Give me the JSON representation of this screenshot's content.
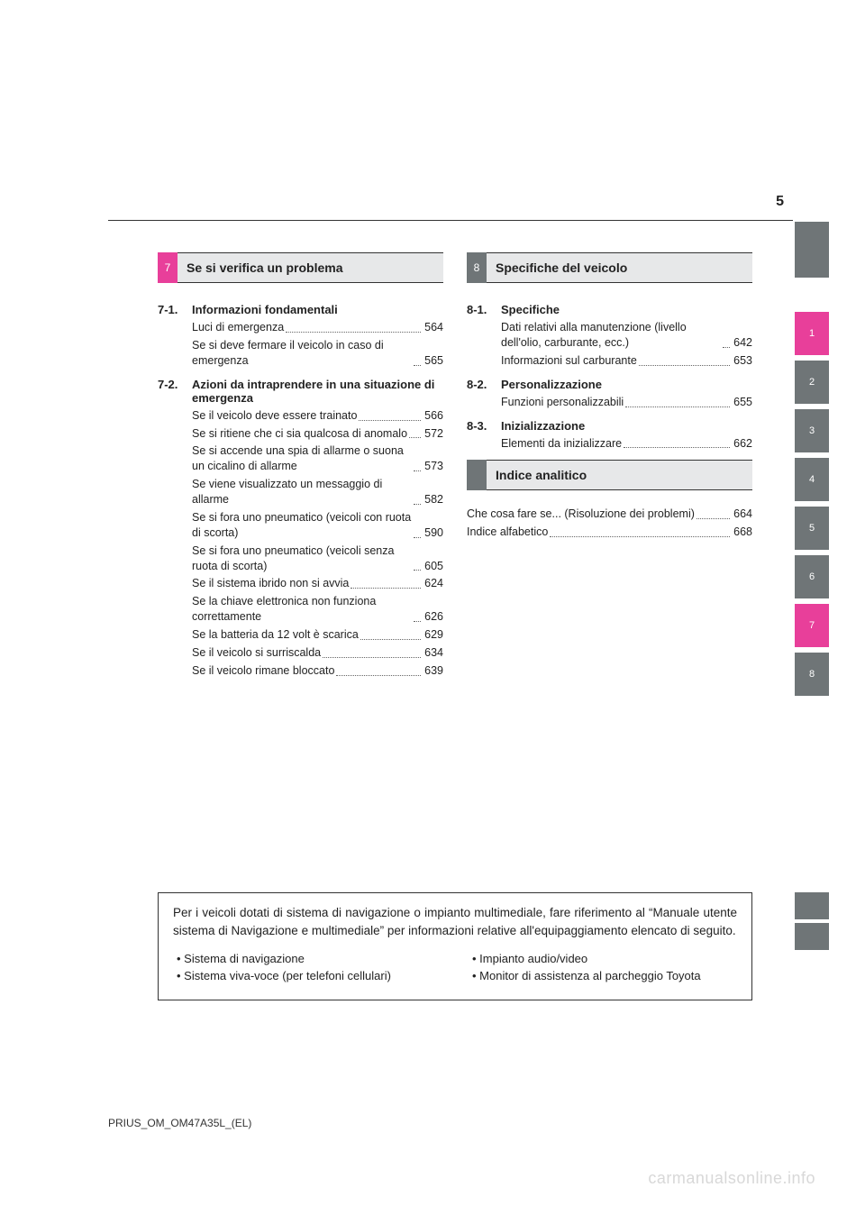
{
  "page_number": "5",
  "section7": {
    "num": "7",
    "title": "Se si verifica un problema",
    "subs": [
      {
        "num": "7-1.",
        "title": "Informazioni fondamentali",
        "entries": [
          {
            "text": "Luci di emergenza",
            "page": "564"
          },
          {
            "text": "Se si deve fermare il veicolo in caso di emergenza",
            "page": "565"
          }
        ]
      },
      {
        "num": "7-2.",
        "title": "Azioni da intraprendere in una situazione di emergenza",
        "entries": [
          {
            "text": "Se il veicolo deve essere trainato",
            "page": "566"
          },
          {
            "text": "Se si ritiene che ci sia qualcosa di anomalo",
            "page": "572"
          },
          {
            "text": "Se si accende una spia di allarme o suona un cicalino di allarme",
            "page": "573"
          },
          {
            "text": "Se viene visualizzato un messaggio di allarme",
            "page": "582"
          },
          {
            "text": "Se si fora uno pneumatico (veicoli con ruota di scorta)",
            "page": "590"
          },
          {
            "text": "Se si fora uno pneumatico (veicoli senza ruota di scorta)",
            "page": "605"
          },
          {
            "text": "Se il sistema ibrido non si avvia",
            "page": "624"
          },
          {
            "text": "Se la chiave elettronica non funziona correttamente",
            "page": "626"
          },
          {
            "text": "Se la batteria da 12 volt è scarica",
            "page": "629"
          },
          {
            "text": "Se il veicolo si surriscalda",
            "page": "634"
          },
          {
            "text": "Se il veicolo rimane bloccato",
            "page": "639"
          }
        ]
      }
    ]
  },
  "section8": {
    "num": "8",
    "title": "Specifiche del veicolo",
    "subs": [
      {
        "num": "8-1.",
        "title": "Specifiche",
        "entries": [
          {
            "text": "Dati relativi alla manutenzione (livello dell'olio, carburante, ecc.)",
            "page": "642"
          },
          {
            "text": "Informazioni sul carburante",
            "page": "653"
          }
        ]
      },
      {
        "num": "8-2.",
        "title": "Personalizzazione",
        "entries": [
          {
            "text": "Funzioni personalizzabili",
            "page": "655"
          }
        ]
      },
      {
        "num": "8-3.",
        "title": "Inizializzazione",
        "entries": [
          {
            "text": "Elementi da inizializzare",
            "page": "662"
          }
        ]
      }
    ]
  },
  "index": {
    "title": "Indice analitico",
    "entries": [
      {
        "text": "Che cosa fare se... (Risoluzione dei problemi)",
        "page": "664"
      },
      {
        "text": "Indice alfabetico",
        "page": "668"
      }
    ]
  },
  "side_tabs": [
    "1",
    "2",
    "3",
    "4",
    "5",
    "6",
    "7",
    "8"
  ],
  "notebox": {
    "intro": "Per i veicoli dotati di sistema di navigazione o impianto multimediale, fare riferimento al “Manuale utente sistema di Navigazione e multimediale” per informazioni relative all'equipaggiamento elencato di seguito.",
    "left": [
      "Sistema di navigazione",
      "Sistema viva-voce (per telefoni cellulari)"
    ],
    "right": [
      "Impianto audio/video",
      "Monitor di assistenza al parcheggio Toyota"
    ]
  },
  "footer": "PRIUS_OM_OM47A35L_(EL)",
  "watermark": "carmanualsonline.info",
  "colors": {
    "pink": "#e83f9a",
    "gray": "#6f7577",
    "lightgray": "#e7e8e9"
  }
}
